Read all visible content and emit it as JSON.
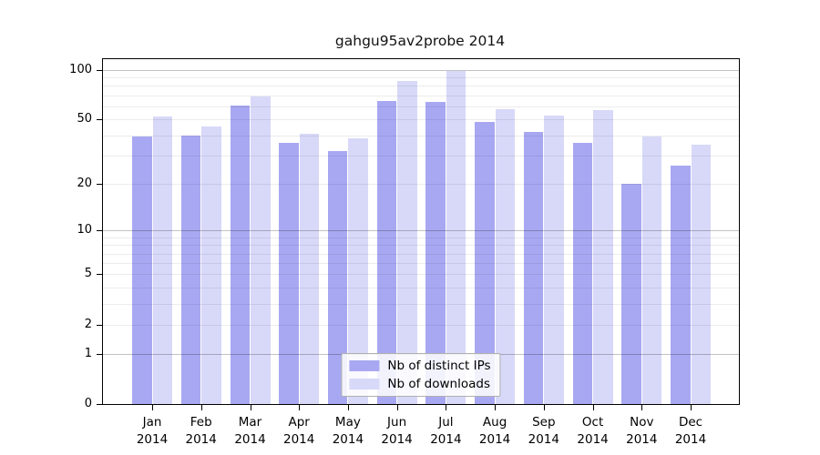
{
  "figure": {
    "title": "gahgu95av2probe 2014"
  },
  "chart_data": {
    "type": "bar",
    "title": "gahgu95av2probe 2014",
    "categories": [
      "Jan 2014",
      "Feb 2014",
      "Mar 2014",
      "Apr 2014",
      "May 2014",
      "Jun 2014",
      "Jul 2014",
      "Aug 2014",
      "Sep 2014",
      "Oct 2014",
      "Nov 2014",
      "Dec 2014"
    ],
    "x_tick_line1": [
      "Jan",
      "Feb",
      "Mar",
      "Apr",
      "May",
      "Jun",
      "Jul",
      "Aug",
      "Sep",
      "Oct",
      "Nov",
      "Dec"
    ],
    "x_tick_line2": [
      "2014",
      "2014",
      "2014",
      "2014",
      "2014",
      "2014",
      "2014",
      "2014",
      "2014",
      "2014",
      "2014",
      "2014"
    ],
    "series": [
      {
        "name": "Nb of distinct IPs",
        "color": "#a8a8f2",
        "values": [
          39,
          40,
          61,
          36,
          32,
          65,
          64,
          48,
          42,
          36,
          20,
          26
        ]
      },
      {
        "name": "Nb of downloads",
        "color": "#d8d8f8",
        "values": [
          52,
          45,
          69,
          41,
          38,
          86,
          98,
          58,
          53,
          57,
          39,
          35
        ]
      }
    ],
    "y_scale": "log1p",
    "y_axis_ticks": [
      100,
      50,
      20,
      10,
      5,
      2,
      1,
      0
    ],
    "y_minor_gridlines": [
      2,
      3,
      4,
      5,
      6,
      7,
      8,
      9,
      20,
      30,
      40,
      50,
      60,
      70,
      80,
      90
    ],
    "y_major_gridlines": [
      1,
      10,
      100
    ],
    "ylim": [
      0,
      110
    ],
    "grid": true,
    "legend_position": "bottom-center",
    "legend_labels": [
      "Nb of distinct IPs",
      "Nb of downloads"
    ]
  },
  "colors": {
    "distinct_ips": "#a8a8f2",
    "downloads": "#d8d8f8",
    "spine": "#000000",
    "minor_grid": "#ececec",
    "major_grid": "#c2c2c2",
    "background": "#ffffff"
  }
}
